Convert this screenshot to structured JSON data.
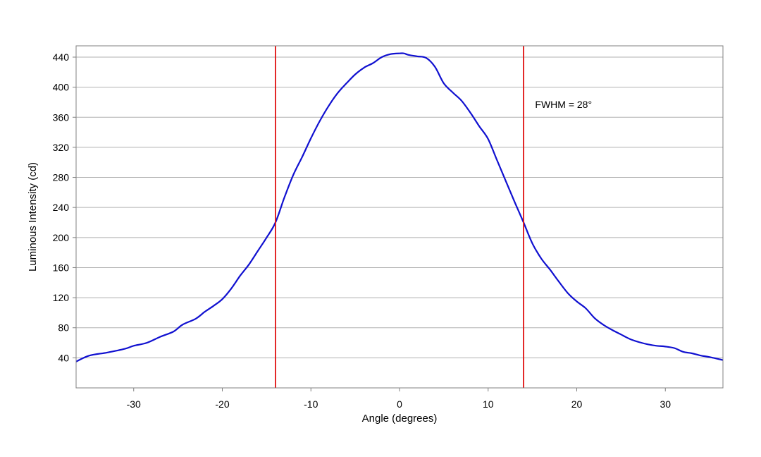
{
  "chart_data": {
    "type": "line",
    "title": "",
    "xlabel": "Angle (degrees)",
    "ylabel": "Luminous Intensity (cd)",
    "xlim": [
      -36.5,
      36.5
    ],
    "ylim": [
      0,
      455
    ],
    "xticks": [
      -30,
      -20,
      -10,
      0,
      10,
      20,
      30
    ],
    "xtick_labels": [
      "-30",
      "-20",
      "-10",
      "0",
      "10",
      "20",
      "30"
    ],
    "yticks": [
      40,
      80,
      120,
      160,
      200,
      240,
      280,
      320,
      360,
      400,
      440
    ],
    "ytick_labels": [
      "40",
      "80",
      "120",
      "160",
      "200",
      "240",
      "280",
      "320",
      "360",
      "400",
      "440"
    ],
    "grid": "horizontal",
    "colors": {
      "series": "#1010d0",
      "markers": "#e01010",
      "grid": "#b0b0b0",
      "frame": "#808080"
    },
    "series": [
      {
        "x": [
          -36.5,
          -35,
          -33,
          -31,
          -30,
          -28.5,
          -27,
          -25.5,
          -24.5,
          -23,
          -22,
          -21,
          -20,
          -19,
          -18,
          -17,
          -16,
          -15,
          -14,
          -13,
          -12,
          -11,
          -10,
          -9,
          -8,
          -7,
          -6,
          -5,
          -4,
          -3,
          -2,
          -1,
          0,
          0.5,
          1,
          2,
          3,
          4,
          5,
          6,
          7,
          8,
          9,
          10,
          11,
          12,
          13,
          14,
          15,
          16,
          17,
          18,
          19,
          20,
          21,
          22,
          23,
          24,
          25,
          26,
          27,
          28,
          29,
          30,
          31,
          32,
          33,
          34,
          35,
          36.5
        ],
        "y": [
          35,
          43,
          47,
          52,
          56,
          60,
          68,
          75,
          84,
          92,
          101,
          109,
          118,
          132,
          149,
          164,
          182,
          200,
          220,
          253,
          283,
          307,
          332,
          355,
          375,
          392,
          405,
          417,
          426,
          432,
          440,
          444,
          445,
          445,
          443,
          441,
          439,
          427,
          405,
          393,
          382,
          366,
          348,
          331,
          303,
          275,
          247,
          220,
          192,
          172,
          157,
          141,
          126,
          115,
          106,
          93,
          84,
          77,
          71,
          65,
          61,
          58,
          56,
          55,
          53,
          48,
          46,
          43,
          41,
          37
        ]
      }
    ],
    "vlines": [
      -14,
      14
    ],
    "annotations": [
      {
        "text": "FWHM = 28°",
        "x": 15.3,
        "y": 377
      }
    ]
  }
}
